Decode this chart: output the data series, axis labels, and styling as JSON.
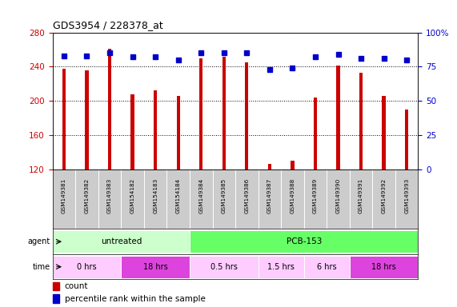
{
  "title": "GDS3954 / 228378_at",
  "samples": [
    "GSM149381",
    "GSM149382",
    "GSM149383",
    "GSM154182",
    "GSM154183",
    "GSM154184",
    "GSM149384",
    "GSM149385",
    "GSM149386",
    "GSM149387",
    "GSM149388",
    "GSM149389",
    "GSM149390",
    "GSM149391",
    "GSM149392",
    "GSM149393"
  ],
  "counts": [
    238,
    236,
    261,
    208,
    212,
    206,
    250,
    252,
    245,
    126,
    130,
    204,
    241,
    233,
    206,
    190
  ],
  "percentile_ranks": [
    83,
    83,
    85,
    82,
    82,
    80,
    85,
    85,
    85,
    73,
    74,
    82,
    84,
    81,
    81,
    80
  ],
  "bar_color": "#cc0000",
  "dot_color": "#0000cc",
  "ylim_left": [
    120,
    280
  ],
  "ylim_right": [
    0,
    100
  ],
  "yticks_left": [
    120,
    160,
    200,
    240,
    280
  ],
  "yticks_right": [
    0,
    25,
    50,
    75,
    100
  ],
  "ytick_right_labels": [
    "0",
    "25",
    "50",
    "75",
    "100%"
  ],
  "agent_groups": [
    {
      "label": "untreated",
      "start": 0,
      "end": 6,
      "color": "#ccffcc"
    },
    {
      "label": "PCB-153",
      "start": 6,
      "end": 16,
      "color": "#66ff66"
    }
  ],
  "time_groups": [
    {
      "label": "0 hrs",
      "start": 0,
      "end": 3,
      "color": "#ffccff"
    },
    {
      "label": "18 hrs",
      "start": 3,
      "end": 6,
      "color": "#dd44dd"
    },
    {
      "label": "0.5 hrs",
      "start": 6,
      "end": 9,
      "color": "#ffccff"
    },
    {
      "label": "1.5 hrs",
      "start": 9,
      "end": 11,
      "color": "#ffccff"
    },
    {
      "label": "6 hrs",
      "start": 11,
      "end": 13,
      "color": "#ffccff"
    },
    {
      "label": "18 hrs",
      "start": 13,
      "end": 16,
      "color": "#dd44dd"
    }
  ],
  "legend_count_label": "count",
  "legend_pct_label": "percentile rank within the sample",
  "background_color": "#ffffff",
  "tick_color_left": "#cc0000",
  "tick_color_right": "#0000cc",
  "label_bg": "#cccccc",
  "bar_width": 0.15
}
